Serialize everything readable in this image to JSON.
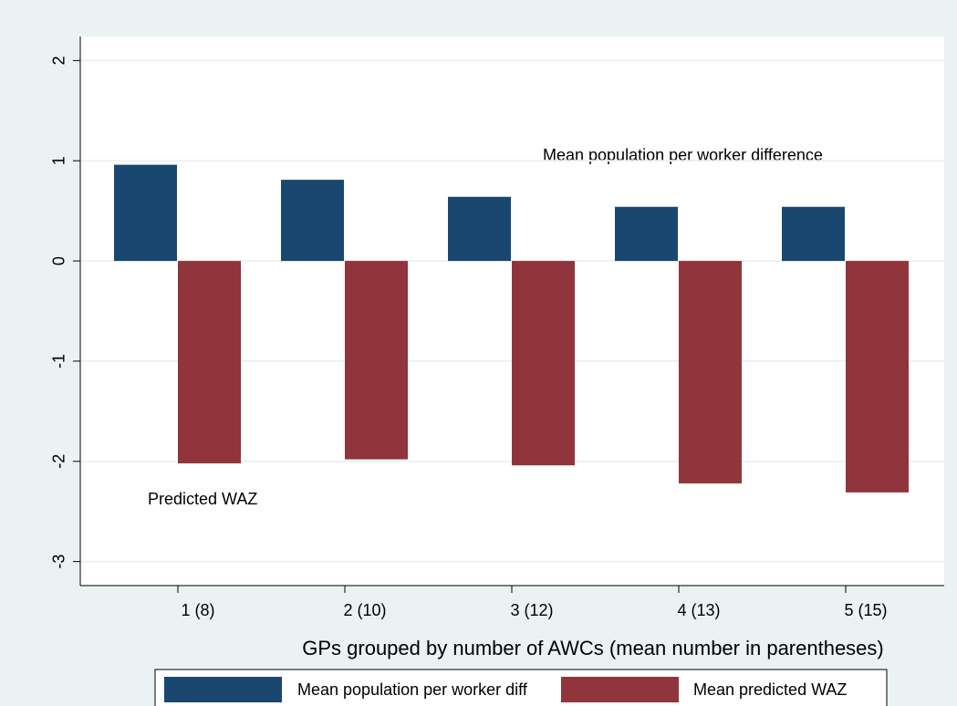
{
  "chart_data": {
    "type": "bar",
    "x_label": "GPs grouped by number of AWCs (mean number in parentheses)",
    "categories": [
      "1 (8)",
      "2 (10)",
      "3 (12)",
      "4 (13)",
      "5 (15)"
    ],
    "series": [
      {
        "name": "Mean population per worker diff",
        "color": "#1a476f",
        "values": [
          0.96,
          0.81,
          0.64,
          0.54,
          0.54
        ]
      },
      {
        "name": "Mean predicted WAZ",
        "color": "#90353b",
        "values": [
          -2.02,
          -1.98,
          -2.04,
          -2.22,
          -2.31
        ]
      }
    ],
    "annotations": [
      "Mean population per worker difference",
      "Predicted WAZ"
    ],
    "ylim": [
      -3.24,
      2.24
    ],
    "yticks": [
      -3,
      -2,
      -1,
      0,
      1,
      2
    ],
    "grid": true
  }
}
